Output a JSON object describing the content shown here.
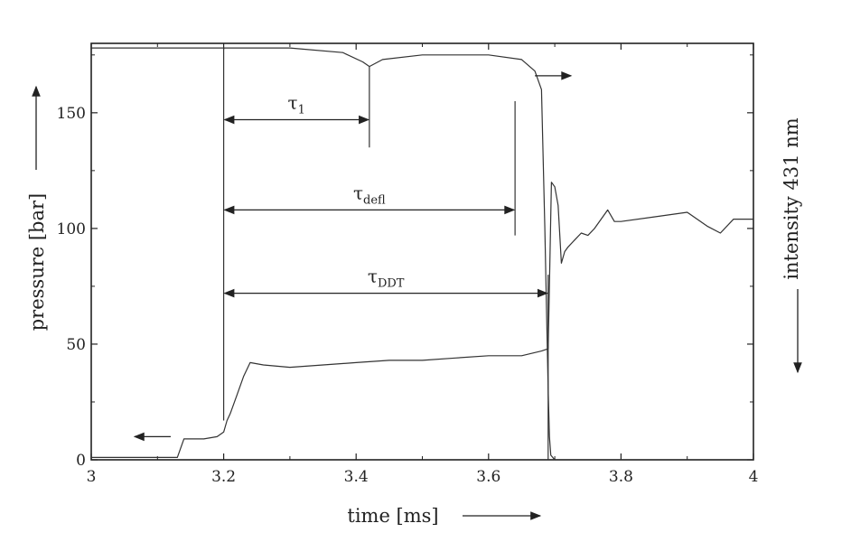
{
  "chart_data": {
    "type": "line",
    "title": "",
    "xlabel": "time [ms]",
    "ylabel": "pressure [bar]",
    "y2label": "intensity 431 nm",
    "xlim": [
      3,
      4
    ],
    "ylim": [
      0,
      180
    ],
    "xticks": [
      "3",
      "3.2",
      "3.4",
      "3.6",
      "3.8",
      "4"
    ],
    "xtick_values": [
      3,
      3.2,
      3.4,
      3.6,
      3.8,
      4
    ],
    "yticks": [
      "0",
      "50",
      "100",
      "150"
    ],
    "ytick_values": [
      0,
      50,
      100,
      150
    ],
    "grid": false,
    "series": [
      {
        "axis": "left",
        "x": [
          3.0,
          3.05,
          3.1,
          3.13,
          3.14,
          3.145,
          3.15,
          3.17,
          3.19,
          3.2,
          3.205,
          3.21,
          3.22,
          3.23,
          3.24,
          3.26,
          3.3,
          3.35,
          3.4,
          3.45,
          3.5,
          3.55,
          3.6,
          3.65,
          3.68,
          3.69,
          3.695,
          3.7,
          3.705,
          3.71,
          3.715,
          3.72,
          3.73,
          3.74,
          3.75,
          3.76,
          3.77,
          3.78,
          3.79,
          3.8,
          3.85,
          3.9,
          3.93,
          3.95,
          3.97,
          4.0
        ],
        "y": [
          1,
          1,
          1,
          1,
          9,
          9,
          9,
          9,
          10,
          12,
          17,
          20,
          28,
          36,
          42,
          41,
          40,
          41,
          42,
          43,
          43,
          44,
          45,
          45,
          47,
          48,
          120,
          118,
          110,
          85,
          90,
          92,
          95,
          98,
          97,
          100,
          104,
          108,
          103,
          103,
          105,
          107,
          101,
          98,
          104,
          104
        ]
      },
      {
        "axis": "right",
        "x": [
          3.0,
          3.1,
          3.2,
          3.3,
          3.38,
          3.41,
          3.42,
          3.44,
          3.5,
          3.6,
          3.65,
          3.67,
          3.68,
          3.685,
          3.69,
          3.692,
          3.694,
          3.7,
          3.8,
          4.0
        ],
        "y": [
          178,
          178,
          178,
          178,
          176,
          172,
          170,
          173,
          175,
          175,
          173,
          168,
          160,
          100,
          30,
          10,
          2,
          0,
          0,
          0
        ]
      }
    ],
    "annotations": [
      {
        "label": "τ",
        "sub": "1",
        "from": 3.2,
        "to": 3.42,
        "y": 147
      },
      {
        "label": "τ",
        "sub": "defl",
        "from": 3.2,
        "to": 3.64,
        "y": 108
      },
      {
        "label": "τ",
        "sub": "DDT",
        "from": 3.2,
        "to": 3.69,
        "y": 72
      }
    ],
    "marker_lines": [
      {
        "x": 3.2,
        "y_top": 178,
        "y_bottom": 17
      },
      {
        "x": 3.42,
        "y_top": 170,
        "y_bottom": 135
      },
      {
        "x": 3.64,
        "y_top": 155,
        "y_bottom": 97
      },
      {
        "x": 3.69,
        "y_top": 80,
        "y_bottom": 0
      }
    ],
    "series_arrows": [
      {
        "x": 3.12,
        "y": 10,
        "direction": "left"
      },
      {
        "x": 3.67,
        "y": 166,
        "direction": "right"
      }
    ]
  }
}
